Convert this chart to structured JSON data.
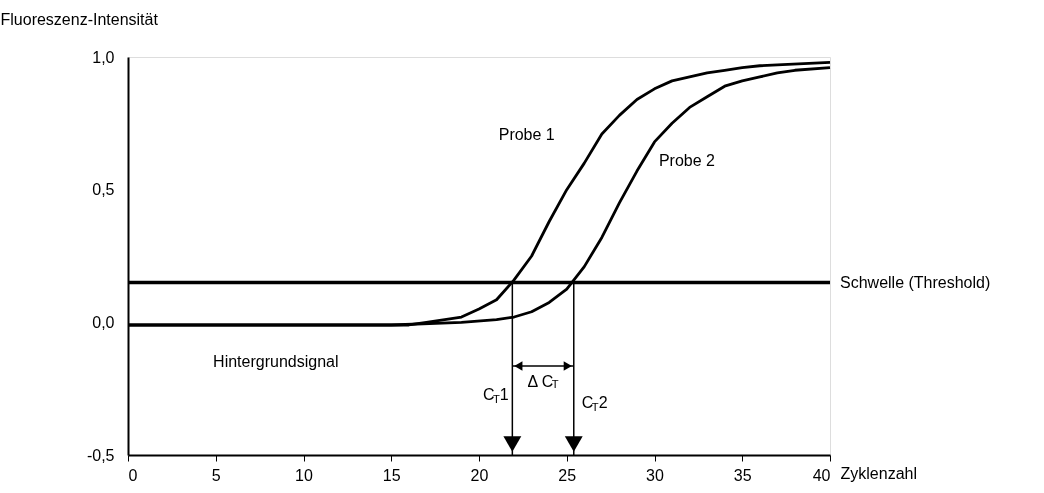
{
  "chart_data": {
    "type": "line",
    "xlabel": "Zyklenzahl",
    "ylabel": "Fluoreszenz-Intensität",
    "xlim": [
      0,
      40
    ],
    "ylim": [
      -0.5,
      1
    ],
    "xticks": [
      0,
      5,
      10,
      15,
      20,
      25,
      30,
      35,
      40
    ],
    "yticks": [
      {
        "value": -0.5,
        "label": "-0,5"
      },
      {
        "value": 0,
        "label": "0,0"
      },
      {
        "value": 0.5,
        "label": "0,5"
      },
      {
        "value": 1,
        "label": "1,0"
      }
    ],
    "grid": false,
    "marker": "none",
    "line_style": "solid",
    "series": [
      {
        "name": "Probe 1",
        "color": "#000000",
        "x": [
          0,
          5,
          10,
          15,
          16,
          17,
          19,
          20,
          21,
          22,
          23,
          24,
          25,
          26,
          27,
          28,
          29,
          30,
          31,
          32,
          33,
          34,
          35,
          36,
          37,
          40
        ],
        "values": [
          -0.01,
          -0.01,
          -0.01,
          -0.01,
          -0.01,
          0.0,
          0.02,
          0.05,
          0.085,
          0.16,
          0.25,
          0.38,
          0.5,
          0.6,
          0.71,
          0.78,
          0.84,
          0.88,
          0.91,
          0.925,
          0.94,
          0.95,
          0.96,
          0.967,
          0.97,
          0.98
        ]
      },
      {
        "name": "Probe 2",
        "color": "#000000",
        "x": [
          0,
          5,
          10,
          15,
          19,
          21,
          22,
          23,
          24,
          25,
          26,
          27,
          28,
          29,
          30,
          31,
          32,
          33,
          34,
          35,
          36,
          37,
          38,
          40
        ],
        "values": [
          -0.01,
          -0.01,
          -0.01,
          -0.01,
          0.0,
          0.01,
          0.02,
          0.04,
          0.075,
          0.125,
          0.21,
          0.32,
          0.45,
          0.57,
          0.68,
          0.75,
          0.81,
          0.85,
          0.89,
          0.91,
          0.925,
          0.94,
          0.95,
          0.96
        ]
      }
    ],
    "ref_lines": [
      {
        "axis": "y",
        "value": 0.15,
        "label": "Schwelle (Threshold)",
        "color": "#000000"
      },
      {
        "axis": "x",
        "value": 21.9,
        "label": "C$_{T}$1",
        "color": "#000000"
      },
      {
        "axis": "x",
        "value": 25.4,
        "label": "C$_{T}$2",
        "color": "#000000"
      }
    ],
    "annotations": [
      "Hintergrundsignal",
      "Δ C$_{T}$"
    ]
  }
}
